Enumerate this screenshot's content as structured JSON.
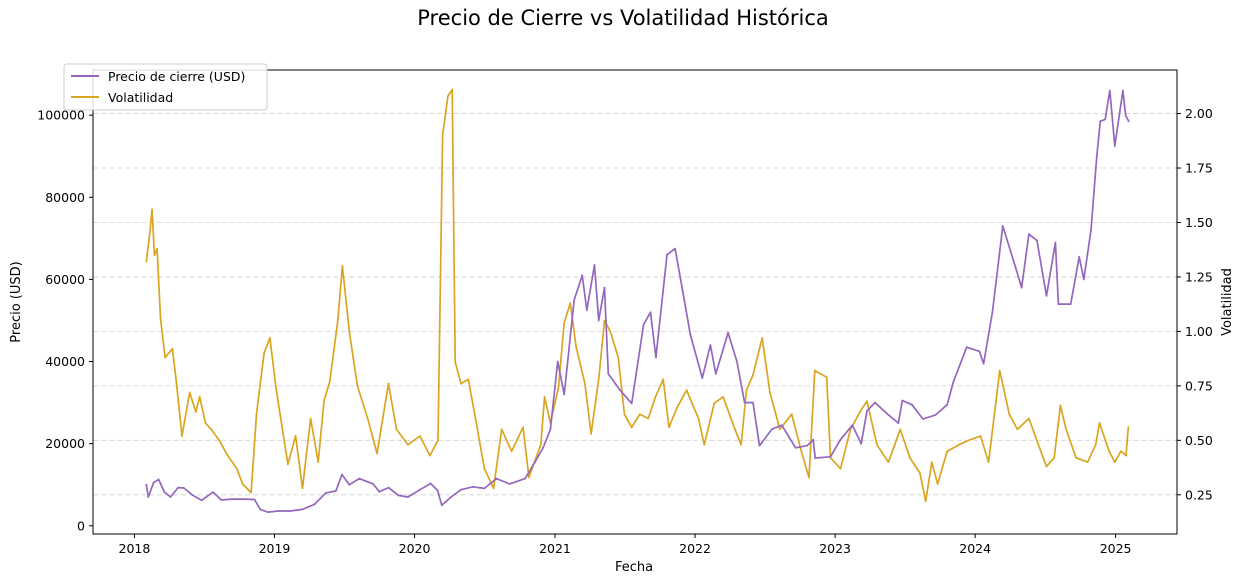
{
  "chart_data": {
    "type": "line",
    "title": "Precio de Cierre vs Volatilidad Histórica",
    "xlabel": "Fecha",
    "ylabel_left": "Precio (USD)",
    "ylabel_right": "Volatilidad",
    "x_ticks": [
      "2018",
      "2019",
      "2020",
      "2021",
      "2022",
      "2023",
      "2024",
      "2025"
    ],
    "y_left_ticks": [
      "0",
      "20000",
      "40000",
      "60000",
      "80000",
      "100000"
    ],
    "y_right_ticks": [
      "0.25",
      "0.50",
      "0.75",
      "1.00",
      "1.25",
      "1.50",
      "1.75",
      "2.00"
    ],
    "xlim": [
      "2017-09-15",
      "2025-06-10"
    ],
    "ylim_left": [
      -2000,
      111000
    ],
    "ylim_right": [
      0.07,
      2.2
    ],
    "grid": "horizontal dashed",
    "legend_position": "top-left",
    "series": [
      {
        "name": "Precio de cierre (USD)",
        "axis": "left",
        "color": "#9467bd",
        "points": [
          [
            "2018-02-01",
            10000
          ],
          [
            "2018-02-06",
            7000
          ],
          [
            "2018-02-20",
            10500
          ],
          [
            "2018-03-05",
            11300
          ],
          [
            "2018-03-20",
            8200
          ],
          [
            "2018-04-05",
            7000
          ],
          [
            "2018-04-25",
            9300
          ],
          [
            "2018-05-10",
            9200
          ],
          [
            "2018-06-01",
            7500
          ],
          [
            "2018-06-25",
            6200
          ],
          [
            "2018-07-25",
            8200
          ],
          [
            "2018-08-15",
            6300
          ],
          [
            "2018-09-15",
            6500
          ],
          [
            "2018-10-15",
            6500
          ],
          [
            "2018-11-10",
            6400
          ],
          [
            "2018-11-25",
            4000
          ],
          [
            "2018-12-15",
            3300
          ],
          [
            "2019-01-10",
            3600
          ],
          [
            "2019-02-10",
            3600
          ],
          [
            "2019-03-15",
            4000
          ],
          [
            "2019-04-15",
            5200
          ],
          [
            "2019-05-15",
            8000
          ],
          [
            "2019-06-10",
            8500
          ],
          [
            "2019-06-26",
            12500
          ],
          [
            "2019-07-15",
            10000
          ],
          [
            "2019-08-10",
            11500
          ],
          [
            "2019-09-15",
            10200
          ],
          [
            "2019-10-01",
            8300
          ],
          [
            "2019-10-25",
            9300
          ],
          [
            "2019-11-20",
            7400
          ],
          [
            "2019-12-15",
            7000
          ],
          [
            "2020-01-15",
            8800
          ],
          [
            "2020-02-12",
            10300
          ],
          [
            "2020-03-01",
            8600
          ],
          [
            "2020-03-12",
            5000
          ],
          [
            "2020-04-05",
            7000
          ],
          [
            "2020-05-01",
            8800
          ],
          [
            "2020-06-01",
            9500
          ],
          [
            "2020-07-01",
            9100
          ],
          [
            "2020-08-01",
            11500
          ],
          [
            "2020-09-05",
            10200
          ],
          [
            "2020-10-15",
            11500
          ],
          [
            "2020-11-10",
            15500
          ],
          [
            "2020-12-01",
            19000
          ],
          [
            "2020-12-20",
            23500
          ],
          [
            "2021-01-08",
            40000
          ],
          [
            "2021-01-25",
            32000
          ],
          [
            "2021-02-20",
            55000
          ],
          [
            "2021-03-13",
            61000
          ],
          [
            "2021-03-25",
            52500
          ],
          [
            "2021-04-14",
            63500
          ],
          [
            "2021-04-25",
            50000
          ],
          [
            "2021-05-10",
            58000
          ],
          [
            "2021-05-20",
            37000
          ],
          [
            "2021-06-20",
            33000
          ],
          [
            "2021-07-20",
            29800
          ],
          [
            "2021-08-20",
            49000
          ],
          [
            "2021-09-07",
            52000
          ],
          [
            "2021-09-21",
            41000
          ],
          [
            "2021-10-20",
            66000
          ],
          [
            "2021-11-10",
            67500
          ],
          [
            "2021-11-30",
            57000
          ],
          [
            "2021-12-20",
            46500
          ],
          [
            "2022-01-20",
            36000
          ],
          [
            "2022-02-10",
            44000
          ],
          [
            "2022-02-24",
            37000
          ],
          [
            "2022-03-28",
            47000
          ],
          [
            "2022-04-20",
            40000
          ],
          [
            "2022-05-10",
            30000
          ],
          [
            "2022-06-01",
            30000
          ],
          [
            "2022-06-18",
            19500
          ],
          [
            "2022-07-20",
            23500
          ],
          [
            "2022-08-15",
            24500
          ],
          [
            "2022-09-20",
            19000
          ],
          [
            "2022-10-20",
            19500
          ],
          [
            "2022-11-05",
            21000
          ],
          [
            "2022-11-10",
            16500
          ],
          [
            "2022-12-20",
            16800
          ],
          [
            "2023-01-15",
            21000
          ],
          [
            "2023-02-15",
            24500
          ],
          [
            "2023-03-10",
            20000
          ],
          [
            "2023-03-25",
            28000
          ],
          [
            "2023-04-15",
            30000
          ],
          [
            "2023-05-20",
            27000
          ],
          [
            "2023-06-15",
            25000
          ],
          [
            "2023-06-25",
            30500
          ],
          [
            "2023-07-20",
            29500
          ],
          [
            "2023-08-18",
            26000
          ],
          [
            "2023-09-20",
            27000
          ],
          [
            "2023-10-20",
            29500
          ],
          [
            "2023-11-05",
            35000
          ],
          [
            "2023-12-10",
            43500
          ],
          [
            "2024-01-12",
            42500
          ],
          [
            "2024-01-23",
            39500
          ],
          [
            "2024-02-15",
            52000
          ],
          [
            "2024-03-13",
            73000
          ],
          [
            "2024-04-15",
            63000
          ],
          [
            "2024-05-01",
            58000
          ],
          [
            "2024-05-20",
            71000
          ],
          [
            "2024-06-10",
            69500
          ],
          [
            "2024-07-05",
            56000
          ],
          [
            "2024-07-28",
            69000
          ],
          [
            "2024-08-05",
            54000
          ],
          [
            "2024-09-06",
            54000
          ],
          [
            "2024-09-28",
            65500
          ],
          [
            "2024-10-10",
            60000
          ],
          [
            "2024-10-29",
            72000
          ],
          [
            "2024-11-13",
            90000
          ],
          [
            "2024-11-22",
            98500
          ],
          [
            "2024-12-05",
            99000
          ],
          [
            "2024-12-17",
            106000
          ],
          [
            "2024-12-30",
            92500
          ],
          [
            "2025-01-20",
            106000
          ],
          [
            "2025-01-27",
            100000
          ],
          [
            "2025-02-04",
            98500
          ]
        ]
      },
      {
        "name": "Volatilidad",
        "axis": "right",
        "color": "#daa520",
        "points": [
          [
            "2018-02-01",
            1.32
          ],
          [
            "2018-02-10",
            1.45
          ],
          [
            "2018-02-16",
            1.56
          ],
          [
            "2018-02-22",
            1.35
          ],
          [
            "2018-03-01",
            1.38
          ],
          [
            "2018-03-10",
            1.06
          ],
          [
            "2018-03-22",
            0.88
          ],
          [
            "2018-04-10",
            0.92
          ],
          [
            "2018-04-20",
            0.77
          ],
          [
            "2018-05-05",
            0.52
          ],
          [
            "2018-05-25",
            0.72
          ],
          [
            "2018-06-10",
            0.63
          ],
          [
            "2018-06-20",
            0.7
          ],
          [
            "2018-07-05",
            0.58
          ],
          [
            "2018-07-20",
            0.55
          ],
          [
            "2018-08-10",
            0.5
          ],
          [
            "2018-09-01",
            0.43
          ],
          [
            "2018-09-25",
            0.37
          ],
          [
            "2018-10-10",
            0.3
          ],
          [
            "2018-11-01",
            0.26
          ],
          [
            "2018-11-15",
            0.62
          ],
          [
            "2018-12-05",
            0.9
          ],
          [
            "2018-12-20",
            0.97
          ],
          [
            "2019-01-05",
            0.74
          ],
          [
            "2019-02-05",
            0.39
          ],
          [
            "2019-02-25",
            0.52
          ],
          [
            "2019-03-15",
            0.28
          ],
          [
            "2019-04-05",
            0.6
          ],
          [
            "2019-04-25",
            0.4
          ],
          [
            "2019-05-10",
            0.68
          ],
          [
            "2019-05-25",
            0.77
          ],
          [
            "2019-06-15",
            1.05
          ],
          [
            "2019-06-27",
            1.3
          ],
          [
            "2019-07-15",
            1.0
          ],
          [
            "2019-08-05",
            0.75
          ],
          [
            "2019-09-01",
            0.6
          ],
          [
            "2019-09-25",
            0.44
          ],
          [
            "2019-10-25",
            0.76
          ],
          [
            "2019-11-15",
            0.55
          ],
          [
            "2019-12-15",
            0.48
          ],
          [
            "2020-01-15",
            0.52
          ],
          [
            "2020-02-10",
            0.43
          ],
          [
            "2020-03-02",
            0.5
          ],
          [
            "2020-03-14",
            1.9
          ],
          [
            "2020-03-28",
            2.08
          ],
          [
            "2020-04-08",
            2.11
          ],
          [
            "2020-04-16",
            0.86
          ],
          [
            "2020-05-01",
            0.76
          ],
          [
            "2020-05-20",
            0.78
          ],
          [
            "2020-06-10",
            0.58
          ],
          [
            "2020-07-01",
            0.37
          ],
          [
            "2020-07-25",
            0.28
          ],
          [
            "2020-08-15",
            0.55
          ],
          [
            "2020-09-10",
            0.45
          ],
          [
            "2020-10-10",
            0.56
          ],
          [
            "2020-10-25",
            0.33
          ],
          [
            "2020-11-25",
            0.48
          ],
          [
            "2020-12-05",
            0.7
          ],
          [
            "2020-12-20",
            0.58
          ],
          [
            "2021-01-10",
            0.74
          ],
          [
            "2021-01-25",
            1.04
          ],
          [
            "2021-02-10",
            1.13
          ],
          [
            "2021-02-25",
            0.93
          ],
          [
            "2021-03-20",
            0.76
          ],
          [
            "2021-04-05",
            0.53
          ],
          [
            "2021-04-25",
            0.78
          ],
          [
            "2021-05-10",
            1.05
          ],
          [
            "2021-05-25",
            1.0
          ],
          [
            "2021-06-15",
            0.88
          ],
          [
            "2021-07-01",
            0.62
          ],
          [
            "2021-07-20",
            0.56
          ],
          [
            "2021-08-10",
            0.62
          ],
          [
            "2021-09-01",
            0.6
          ],
          [
            "2021-09-20",
            0.7
          ],
          [
            "2021-10-10",
            0.78
          ],
          [
            "2021-10-25",
            0.56
          ],
          [
            "2021-11-15",
            0.65
          ],
          [
            "2021-12-10",
            0.73
          ],
          [
            "2022-01-10",
            0.6
          ],
          [
            "2022-01-25",
            0.48
          ],
          [
            "2022-02-20",
            0.67
          ],
          [
            "2022-03-15",
            0.7
          ],
          [
            "2022-04-15",
            0.55
          ],
          [
            "2022-05-01",
            0.48
          ],
          [
            "2022-05-15",
            0.73
          ],
          [
            "2022-06-01",
            0.8
          ],
          [
            "2022-06-25",
            0.97
          ],
          [
            "2022-07-15",
            0.72
          ],
          [
            "2022-08-10",
            0.55
          ],
          [
            "2022-09-10",
            0.62
          ],
          [
            "2022-10-05",
            0.45
          ],
          [
            "2022-10-25",
            0.33
          ],
          [
            "2022-11-09",
            0.82
          ],
          [
            "2022-12-10",
            0.79
          ],
          [
            "2022-12-20",
            0.42
          ],
          [
            "2023-01-15",
            0.37
          ],
          [
            "2023-02-10",
            0.55
          ],
          [
            "2023-03-10",
            0.64
          ],
          [
            "2023-03-25",
            0.68
          ],
          [
            "2023-04-20",
            0.48
          ],
          [
            "2023-05-20",
            0.4
          ],
          [
            "2023-06-20",
            0.55
          ],
          [
            "2023-07-15",
            0.42
          ],
          [
            "2023-08-10",
            0.35
          ],
          [
            "2023-08-25",
            0.22
          ],
          [
            "2023-09-10",
            0.4
          ],
          [
            "2023-09-25",
            0.3
          ],
          [
            "2023-10-20",
            0.45
          ],
          [
            "2023-11-20",
            0.48
          ],
          [
            "2023-12-15",
            0.5
          ],
          [
            "2024-01-15",
            0.52
          ],
          [
            "2024-02-05",
            0.4
          ],
          [
            "2024-03-05",
            0.82
          ],
          [
            "2024-03-30",
            0.62
          ],
          [
            "2024-04-20",
            0.55
          ],
          [
            "2024-05-20",
            0.6
          ],
          [
            "2024-06-20",
            0.45
          ],
          [
            "2024-07-05",
            0.38
          ],
          [
            "2024-07-25",
            0.42
          ],
          [
            "2024-08-10",
            0.66
          ],
          [
            "2024-08-25",
            0.55
          ],
          [
            "2024-09-20",
            0.42
          ],
          [
            "2024-10-20",
            0.4
          ],
          [
            "2024-11-10",
            0.48
          ],
          [
            "2024-11-20",
            0.58
          ],
          [
            "2024-12-15",
            0.45
          ],
          [
            "2024-12-30",
            0.4
          ],
          [
            "2025-01-15",
            0.45
          ],
          [
            "2025-01-28",
            0.43
          ],
          [
            "2025-02-03",
            0.56
          ]
        ]
      }
    ]
  }
}
